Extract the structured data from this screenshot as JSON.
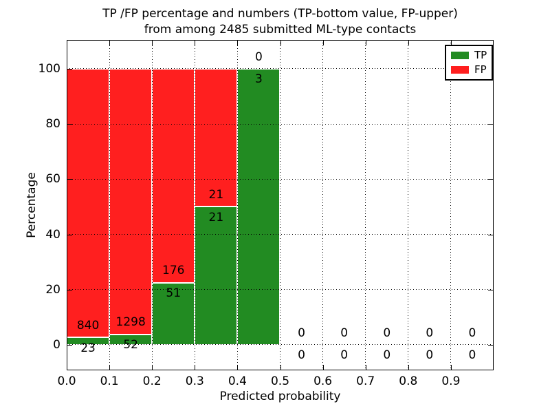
{
  "chart_data": {
    "type": "bar",
    "stacked": true,
    "title": "TP /FP percentage and numbers (TP-bottom value, FP-upper) from among 2485 submitted ML-type contacts",
    "title_lines": [
      "TP /FP percentage and numbers (TP-bottom value, FP-upper)",
      "from among 2485 submitted ML-type contacts"
    ],
    "xlabel": "Predicted probability",
    "ylabel": "Percentage",
    "bins": [
      {
        "range": [
          0.0,
          0.1
        ],
        "tp": 23,
        "fp": 840
      },
      {
        "range": [
          0.1,
          0.2
        ],
        "tp": 52,
        "fp": 1298
      },
      {
        "range": [
          0.2,
          0.3
        ],
        "tp": 51,
        "fp": 176
      },
      {
        "range": [
          0.3,
          0.4
        ],
        "tp": 21,
        "fp": 21
      },
      {
        "range": [
          0.4,
          0.5
        ],
        "tp": 3,
        "fp": 0
      },
      {
        "range": [
          0.5,
          0.6
        ],
        "tp": 0,
        "fp": 0
      },
      {
        "range": [
          0.6,
          0.7
        ],
        "tp": 0,
        "fp": 0
      },
      {
        "range": [
          0.7,
          0.8
        ],
        "tp": 0,
        "fp": 0
      },
      {
        "range": [
          0.8,
          0.9
        ],
        "tp": 0,
        "fp": 0
      },
      {
        "range": [
          0.9,
          1.0
        ],
        "tp": 0,
        "fp": 0
      }
    ],
    "xticks": {
      "values": [
        0.0,
        0.1,
        0.2,
        0.3,
        0.4,
        0.5,
        0.6,
        0.7,
        0.8,
        0.9
      ],
      "labels": [
        "0.0",
        "0.1",
        "0.2",
        "0.3",
        "0.4",
        "0.5",
        "0.6",
        "0.7",
        "0.8",
        "0.9"
      ]
    },
    "yticks": {
      "values": [
        0,
        20,
        40,
        60,
        80,
        100
      ],
      "labels": [
        "0",
        "20",
        "40",
        "60",
        "80",
        "100"
      ]
    },
    "xlim": [
      0.0,
      1.0
    ],
    "ylim": [
      -9.23,
      110.47
    ],
    "grid": "dotted",
    "colors": {
      "tp": "#228B22",
      "fp": "#ff1f1f"
    },
    "legend": {
      "position": "upper right",
      "items": [
        {
          "label": "TP",
          "color": "#228B22"
        },
        {
          "label": "FP",
          "color": "#ff1f1f"
        }
      ]
    }
  }
}
